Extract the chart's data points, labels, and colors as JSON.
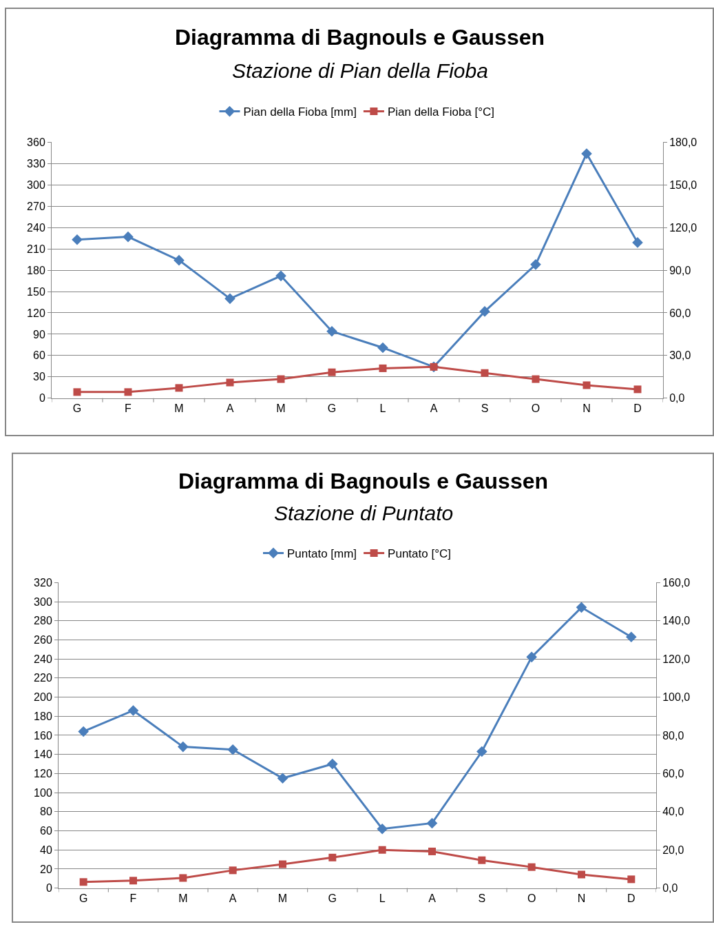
{
  "chart_data": [
    {
      "type": "line",
      "title": "Diagramma di Bagnouls e Gaussen",
      "subtitle": "Stazione di Pian della Fioba",
      "categories": [
        "G",
        "F",
        "M",
        "A",
        "M",
        "G",
        "L",
        "A",
        "S",
        "O",
        "N",
        "D"
      ],
      "series": [
        {
          "name": "Pian della Fioba [mm]",
          "color": "#4a7ebb",
          "marker": "diamond",
          "values": [
            223,
            227,
            194,
            140,
            172,
            94,
            71,
            44,
            122,
            188,
            344,
            219
          ]
        },
        {
          "name": "Pian della Fioba [°C]",
          "color": "#be4b48",
          "marker": "square",
          "axis": "y2",
          "values": [
            4.3,
            4.3,
            7.2,
            11,
            13.4,
            18.2,
            21,
            22,
            17.7,
            13.4,
            9.1,
            6.2
          ]
        }
      ],
      "ylim": [
        0,
        360
      ],
      "yticks": [
        0,
        30,
        60,
        90,
        120,
        150,
        180,
        210,
        240,
        270,
        300,
        330,
        360
      ],
      "y2lim": [
        0,
        180
      ],
      "y2ticks": [
        {
          "value": 0,
          "label": "0,0"
        },
        {
          "value": 30,
          "label": "30,0"
        },
        {
          "value": 60,
          "label": "60,0"
        },
        {
          "value": 90,
          "label": "90,0"
        },
        {
          "value": 120,
          "label": "120,0"
        },
        {
          "value": 150,
          "label": "150,0"
        },
        {
          "value": 180,
          "label": "180,0"
        }
      ],
      "grid": "y",
      "legend": "top",
      "line_style": "solid"
    },
    {
      "type": "line",
      "title": "Diagramma di Bagnouls e Gaussen",
      "subtitle": "Stazione di Puntato",
      "categories": [
        "G",
        "F",
        "M",
        "A",
        "M",
        "G",
        "L",
        "A",
        "S",
        "O",
        "N",
        "D"
      ],
      "series": [
        {
          "name": "Puntato [mm]",
          "color": "#4a7ebb",
          "marker": "diamond",
          "values": [
            164,
            186,
            148,
            145,
            115,
            130,
            62,
            68,
            143,
            242,
            294,
            263
          ]
        },
        {
          "name": "Puntato [°C]",
          "color": "#be4b48",
          "marker": "square",
          "axis": "y2",
          "values": [
            3.2,
            3.9,
            5.3,
            9.3,
            12.5,
            16,
            20,
            19.2,
            14.6,
            11,
            7.1,
            4.6
          ]
        }
      ],
      "ylim": [
        0,
        320
      ],
      "yticks": [
        0,
        20,
        40,
        60,
        80,
        100,
        120,
        140,
        160,
        180,
        200,
        220,
        240,
        260,
        280,
        300,
        320
      ],
      "y2lim": [
        0,
        160
      ],
      "y2ticks": [
        {
          "value": 0,
          "label": "0,0"
        },
        {
          "value": 20,
          "label": "20,0"
        },
        {
          "value": 40,
          "label": "40,0"
        },
        {
          "value": 60,
          "label": "60,0"
        },
        {
          "value": 80,
          "label": "80,0"
        },
        {
          "value": 100,
          "label": "100,0"
        },
        {
          "value": 120,
          "label": "120,0"
        },
        {
          "value": 140,
          "label": "140,0"
        },
        {
          "value": 160,
          "label": "160,0"
        }
      ],
      "grid": "y",
      "legend": "top",
      "line_style": "solid"
    }
  ]
}
